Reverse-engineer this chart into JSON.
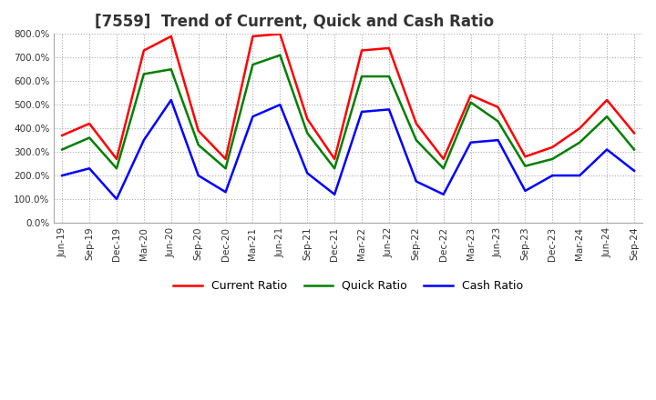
{
  "title": "[7559]  Trend of Current, Quick and Cash Ratio",
  "x_labels": [
    "Jun-19",
    "Sep-19",
    "Dec-19",
    "Mar-20",
    "Jun-20",
    "Sep-20",
    "Dec-20",
    "Mar-21",
    "Jun-21",
    "Sep-21",
    "Dec-21",
    "Mar-22",
    "Jun-22",
    "Sep-22",
    "Dec-22",
    "Mar-23",
    "Jun-23",
    "Sep-23",
    "Dec-23",
    "Mar-24",
    "Jun-24",
    "Sep-24"
  ],
  "current_ratio": [
    370,
    420,
    270,
    730,
    790,
    390,
    270,
    790,
    800,
    440,
    270,
    730,
    740,
    420,
    270,
    540,
    490,
    280,
    320,
    400,
    520,
    380
  ],
  "quick_ratio": [
    310,
    360,
    230,
    630,
    650,
    330,
    230,
    670,
    710,
    380,
    230,
    620,
    620,
    350,
    230,
    510,
    430,
    240,
    270,
    340,
    450,
    310
  ],
  "cash_ratio": [
    200,
    230,
    100,
    350,
    520,
    200,
    130,
    450,
    500,
    210,
    120,
    470,
    480,
    175,
    120,
    340,
    350,
    135,
    200,
    200,
    310,
    220
  ],
  "current_color": "#FF0000",
  "quick_color": "#008000",
  "cash_color": "#0000FF",
  "ylim": [
    0,
    800
  ],
  "yticks": [
    0,
    100,
    200,
    300,
    400,
    500,
    600,
    700,
    800
  ],
  "background_color": "#ffffff",
  "grid_color": "#aaaaaa",
  "title_fontsize": 12,
  "legend_labels": [
    "Current Ratio",
    "Quick Ratio",
    "Cash Ratio"
  ]
}
